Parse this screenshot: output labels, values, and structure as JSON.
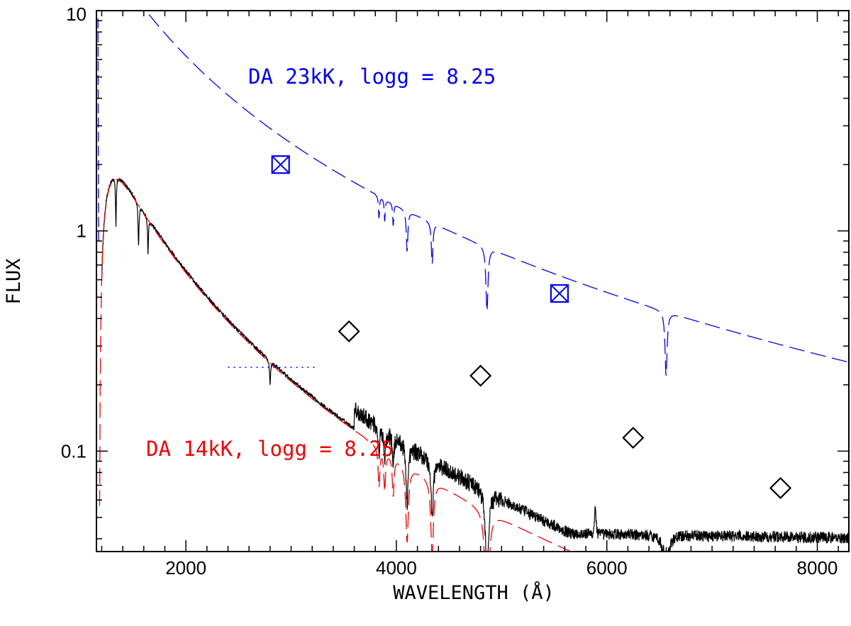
{
  "chart_data": {
    "type": "line",
    "title": "",
    "xlabel": "WAVELENGTH (Å)",
    "ylabel": "FLUX",
    "xlim": [
      1150,
      8300
    ],
    "ylim": [
      0.035,
      10
    ],
    "yscale": "log",
    "x_ticks": [
      2000,
      4000,
      6000,
      8000
    ],
    "x_tick_labels": [
      "2000",
      "4000",
      "6000",
      "8000"
    ],
    "y_ticks": [
      0.1,
      1,
      10
    ],
    "y_tick_labels": [
      "0.1",
      "1",
      "10"
    ],
    "colors": {
      "hot_model": "#0000ee",
      "cool_model": "#ee0000",
      "observed": "#000000"
    },
    "series": [
      {
        "name": "DA 23kK, logg = 8.25",
        "label_text": "DA 23kK, logg = 8.25",
        "style": "dashed",
        "color": "#0000ee",
        "temperature_K": 23000,
        "logg": 8.25
      },
      {
        "name": "DA 14kK, logg = 8.25",
        "label_text": "DA 14kK, logg = 8.25",
        "style": "dashed",
        "color": "#ee0000",
        "temperature_K": 14000,
        "logg": 8.25
      },
      {
        "name": "observed spectrum",
        "style": "solid",
        "color": "#000000"
      }
    ],
    "balmer_lines": [
      3835,
      3889,
      3970,
      4102,
      4340,
      4861,
      6563
    ],
    "photometry_blue_boxes": [
      {
        "x": 2900,
        "y": 2.0
      },
      {
        "x": 5550,
        "y": 0.52
      }
    ],
    "photometry_black_diamonds": [
      {
        "x": 3550,
        "y": 0.35
      },
      {
        "x": 4800,
        "y": 0.22
      },
      {
        "x": 6250,
        "y": 0.115
      },
      {
        "x": 7650,
        "y": 0.068
      }
    ],
    "dotted_segment": {
      "x": [
        2400,
        3250
      ],
      "y": 0.24
    }
  }
}
